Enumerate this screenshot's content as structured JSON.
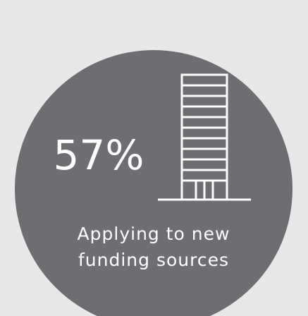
{
  "stat": {
    "value": "57%",
    "label_lines": [
      "Applying to new",
      "funding sources"
    ]
  }
}
